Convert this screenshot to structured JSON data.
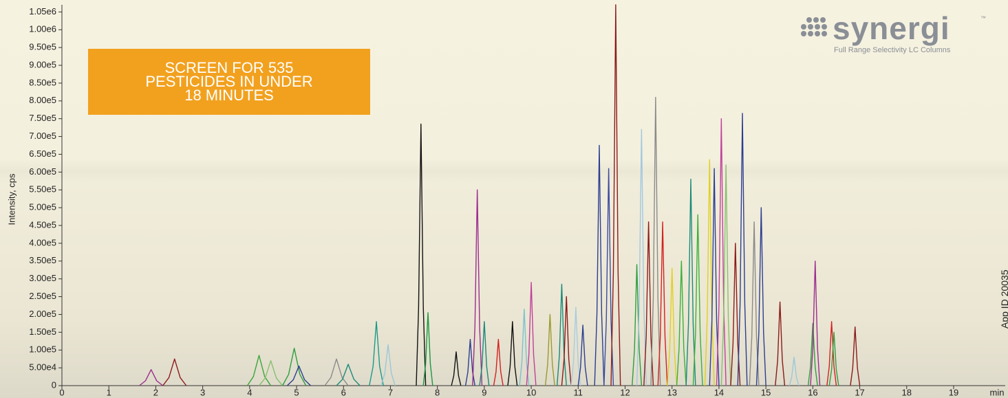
{
  "chart_data": {
    "type": "line",
    "annotation": "SCREEN FOR 535 PESTICIDES IN UNDER 18 MINUTES",
    "ylabel": "Intensity, cps",
    "xlabel": "min",
    "xlim": [
      0,
      20.1
    ],
    "ylim": [
      0,
      1070000
    ],
    "xticks": [
      0,
      1,
      2,
      3,
      4,
      5,
      6,
      7,
      8,
      9,
      10,
      11,
      12,
      13,
      14,
      15,
      16,
      17,
      18,
      19
    ],
    "yticks": [
      0,
      {
        "value": 50000,
        "label": "5.00e4"
      },
      {
        "value": 100000,
        "label": "1.00e5"
      },
      {
        "value": 150000,
        "label": "1.50e5"
      },
      {
        "value": 200000,
        "label": "2.00e5"
      },
      {
        "value": 250000,
        "label": "2.50e5"
      },
      {
        "value": 300000,
        "label": "3.00e5"
      },
      {
        "value": 350000,
        "label": "3.50e5"
      },
      {
        "value": 400000,
        "label": "4.00e5"
      },
      {
        "value": 450000,
        "label": "4.50e5"
      },
      {
        "value": 500000,
        "label": "5.00e5"
      },
      {
        "value": 550000,
        "label": "5.50e5"
      },
      {
        "value": 600000,
        "label": "6.00e5"
      },
      {
        "value": 650000,
        "label": "6.50e5"
      },
      {
        "value": 700000,
        "label": "7.00e5"
      },
      {
        "value": 750000,
        "label": "7.50e5"
      },
      {
        "value": 800000,
        "label": "8.00e5"
      },
      {
        "value": 850000,
        "label": "8.50e5"
      },
      {
        "value": 900000,
        "label": "9.00e5"
      },
      {
        "value": 950000,
        "label": "9.50e5"
      },
      {
        "value": 1000000,
        "label": "1.00e6"
      },
      {
        "value": 1050000,
        "label": "1.05e6"
      }
    ],
    "series": [
      {
        "color": "#9b2d8e",
        "x": [
          1.65,
          1.78,
          1.9,
          2.02,
          2.15
        ],
        "values": [
          0,
          13500,
          45000,
          13500,
          0
        ]
      },
      {
        "color": "#8b1a1a",
        "x": [
          2.15,
          2.28,
          2.4,
          2.52,
          2.65
        ],
        "values": [
          0,
          22500,
          75000,
          22500,
          0
        ]
      },
      {
        "color": "#3aa63a",
        "x": [
          3.95,
          4.08,
          4.2,
          4.32,
          4.45
        ],
        "values": [
          0,
          25500,
          85000,
          25500,
          0
        ]
      },
      {
        "color": "#88c070",
        "x": [
          4.2,
          4.33,
          4.45,
          4.57,
          4.7
        ],
        "values": [
          0,
          21000,
          70000,
          21000,
          0
        ]
      },
      {
        "color": "#2e9e3e",
        "x": [
          4.7,
          4.83,
          4.95,
          5.07,
          5.2
        ],
        "values": [
          0,
          31500,
          105000,
          31500,
          0
        ]
      },
      {
        "color": "#2c3e91",
        "x": [
          4.8,
          4.93,
          5.05,
          5.17,
          5.3
        ],
        "values": [
          0,
          16500,
          55000,
          16500,
          0
        ]
      },
      {
        "color": "#8a8a8a",
        "x": [
          5.6,
          5.73,
          5.85,
          5.97,
          6.1
        ],
        "values": [
          0,
          22500,
          75000,
          22500,
          0
        ]
      },
      {
        "color": "#1a8a7a",
        "x": [
          5.85,
          5.98,
          6.1,
          6.22,
          6.35
        ],
        "values": [
          0,
          18000,
          60000,
          18000,
          0
        ]
      },
      {
        "color": "#1a9a8a",
        "x": [
          6.55,
          6.63,
          6.7,
          6.77,
          6.85
        ],
        "values": [
          0,
          54000,
          180000,
          54000,
          0
        ]
      },
      {
        "color": "#9cc8d8",
        "x": [
          6.8,
          6.88,
          6.95,
          7.02,
          7.1
        ],
        "values": [
          0,
          34500,
          115000,
          34500,
          0
        ]
      },
      {
        "color": "#111111",
        "x": [
          7.55,
          7.6,
          7.65,
          7.7,
          7.75
        ],
        "values": [
          0,
          220500,
          735000,
          220500,
          0
        ]
      },
      {
        "color": "#1a9a40",
        "x": [
          7.7,
          7.75,
          7.8,
          7.85,
          7.9
        ],
        "values": [
          0,
          61500,
          205000,
          61500,
          0
        ]
      },
      {
        "color": "#111111",
        "x": [
          8.3,
          8.35,
          8.4,
          8.45,
          8.5
        ],
        "values": [
          0,
          28500,
          95000,
          28500,
          0
        ]
      },
      {
        "color": "#2c3e91",
        "x": [
          8.6,
          8.65,
          8.7,
          8.75,
          8.8
        ],
        "values": [
          0,
          39000,
          130000,
          39000,
          0
        ]
      },
      {
        "color": "#9b2d8e",
        "x": [
          8.75,
          8.8,
          8.85,
          8.9,
          8.95
        ],
        "values": [
          0,
          165000,
          550000,
          165000,
          0
        ]
      },
      {
        "color": "#1a8a7a",
        "x": [
          8.9,
          8.95,
          9,
          9.05,
          9.1
        ],
        "values": [
          0,
          54000,
          180000,
          54000,
          0
        ]
      },
      {
        "color": "#d42020",
        "x": [
          9.2,
          9.25,
          9.3,
          9.35,
          9.4
        ],
        "values": [
          0,
          39000,
          130000,
          39000,
          0
        ]
      },
      {
        "color": "#111111",
        "x": [
          9.5,
          9.55,
          9.6,
          9.65,
          9.7
        ],
        "values": [
          0,
          54000,
          180000,
          54000,
          0
        ]
      },
      {
        "color": "#7ec0d0",
        "x": [
          9.75,
          9.8,
          9.85,
          9.9,
          9.95
        ],
        "values": [
          0,
          64500,
          215000,
          64500,
          0
        ]
      },
      {
        "color": "#c0409a",
        "x": [
          9.9,
          9.95,
          10,
          10.05,
          10.1
        ],
        "values": [
          0,
          87000,
          290000,
          87000,
          0
        ]
      },
      {
        "color": "#9a9a30",
        "x": [
          10.3,
          10.35,
          10.4,
          10.45,
          10.5
        ],
        "values": [
          0,
          60000,
          200000,
          60000,
          0
        ]
      },
      {
        "color": "#1a8a7a",
        "x": [
          10.55,
          10.6,
          10.65,
          10.7,
          10.75
        ],
        "values": [
          0,
          85500,
          285000,
          85500,
          0
        ]
      },
      {
        "color": "#8b1a1a",
        "x": [
          10.65,
          10.7,
          10.75,
          10.8,
          10.85
        ],
        "values": [
          0,
          75000,
          250000,
          75000,
          0
        ]
      },
      {
        "color": "#a8cce0",
        "x": [
          10.85,
          10.9,
          10.95,
          11,
          11.05
        ],
        "values": [
          0,
          66000,
          220000,
          66000,
          0
        ]
      },
      {
        "color": "#2c3e91",
        "x": [
          11,
          11.05,
          11.1,
          11.15,
          11.2
        ],
        "values": [
          0,
          51000,
          170000,
          51000,
          0
        ]
      },
      {
        "color": "#2c3e91",
        "x": [
          11.35,
          11.4,
          11.45,
          11.5,
          11.55
        ],
        "values": [
          0,
          202500,
          675000,
          202500,
          0
        ]
      },
      {
        "color": "#3b4aa0",
        "x": [
          11.55,
          11.6,
          11.65,
          11.7,
          11.75
        ],
        "values": [
          0,
          183000,
          610000,
          183000,
          0
        ]
      },
      {
        "color": "#8b1a1a",
        "x": [
          11.7,
          11.75,
          11.8,
          11.85,
          11.9
        ],
        "values": [
          0,
          321000,
          1070000,
          321000,
          0
        ]
      },
      {
        "color": "#2e9e3e",
        "x": [
          12.15,
          12.2,
          12.25,
          12.3,
          12.35
        ],
        "values": [
          0,
          102000,
          340000,
          102000,
          0
        ]
      },
      {
        "color": "#a0c8e0",
        "x": [
          12.25,
          12.3,
          12.35,
          12.4,
          12.45
        ],
        "values": [
          0,
          216000,
          720000,
          216000,
          0
        ]
      },
      {
        "color": "#8b1a1a",
        "x": [
          12.4,
          12.45,
          12.5,
          12.55,
          12.6
        ],
        "values": [
          0,
          138000,
          460000,
          138000,
          0
        ]
      },
      {
        "color": "#8a8a8a",
        "x": [
          12.55,
          12.6,
          12.65,
          12.7,
          12.75
        ],
        "values": [
          0,
          243000,
          810000,
          243000,
          0
        ]
      },
      {
        "color": "#d42020",
        "x": [
          12.7,
          12.75,
          12.8,
          12.85,
          12.9
        ],
        "values": [
          0,
          138000,
          460000,
          138000,
          0
        ]
      },
      {
        "color": "#e0d020",
        "x": [
          12.9,
          12.95,
          13,
          13.05,
          13.1
        ],
        "values": [
          0,
          99000,
          330000,
          99000,
          0
        ]
      },
      {
        "color": "#3ab03a",
        "x": [
          13.1,
          13.15,
          13.2,
          13.25,
          13.3
        ],
        "values": [
          0,
          105000,
          350000,
          105000,
          0
        ]
      },
      {
        "color": "#1a8a7a",
        "x": [
          13.3,
          13.35,
          13.4,
          13.45,
          13.5
        ],
        "values": [
          0,
          174000,
          580000,
          174000,
          0
        ]
      },
      {
        "color": "#3ab03a",
        "x": [
          13.45,
          13.5,
          13.55,
          13.6,
          13.65
        ],
        "values": [
          0,
          144000,
          480000,
          144000,
          0
        ]
      },
      {
        "color": "#e0d020",
        "x": [
          13.7,
          13.75,
          13.8,
          13.85,
          13.9
        ],
        "values": [
          0,
          190500,
          635000,
          190500,
          0
        ]
      },
      {
        "color": "#2c3e91",
        "x": [
          13.8,
          13.85,
          13.9,
          13.95,
          14
        ],
        "values": [
          0,
          183000,
          610000,
          183000,
          0
        ]
      },
      {
        "color": "#c0409a",
        "x": [
          13.95,
          14,
          14.05,
          14.1,
          14.15
        ],
        "values": [
          0,
          225000,
          750000,
          225000,
          0
        ]
      },
      {
        "color": "#88c070",
        "x": [
          14.05,
          14.1,
          14.15,
          14.2,
          14.25
        ],
        "values": [
          0,
          186000,
          620000,
          186000,
          0
        ]
      },
      {
        "color": "#8b1a1a",
        "x": [
          14.25,
          14.3,
          14.35,
          14.4,
          14.45
        ],
        "values": [
          0,
          120000,
          400000,
          120000,
          0
        ]
      },
      {
        "color": "#2c3e91",
        "x": [
          14.4,
          14.45,
          14.5,
          14.55,
          14.6
        ],
        "values": [
          0,
          229500,
          765000,
          229500,
          0
        ]
      },
      {
        "color": "#8a8a8a",
        "x": [
          14.65,
          14.7,
          14.75,
          14.8,
          14.85
        ],
        "values": [
          0,
          138000,
          460000,
          138000,
          0
        ]
      },
      {
        "color": "#2c3e91",
        "x": [
          14.8,
          14.85,
          14.9,
          14.95,
          15
        ],
        "values": [
          0,
          150000,
          500000,
          150000,
          0
        ]
      },
      {
        "color": "#8b1a1a",
        "x": [
          15.2,
          15.25,
          15.3,
          15.35,
          15.4
        ],
        "values": [
          0,
          70500,
          235000,
          70500,
          0
        ]
      },
      {
        "color": "#9cc8d8",
        "x": [
          15.5,
          15.55,
          15.6,
          15.65,
          15.7
        ],
        "values": [
          0,
          24000,
          80000,
          24000,
          0
        ]
      },
      {
        "color": "#2e9e3e",
        "x": [
          15.9,
          15.95,
          16,
          16.05,
          16.1
        ],
        "values": [
          0,
          52500,
          175000,
          52500,
          0
        ]
      },
      {
        "color": "#9b2d8e",
        "x": [
          15.95,
          16,
          16.05,
          16.1,
          16.15
        ],
        "values": [
          0,
          105000,
          350000,
          105000,
          0
        ]
      },
      {
        "color": "#d42020",
        "x": [
          16.3,
          16.35,
          16.4,
          16.45,
          16.5
        ],
        "values": [
          0,
          54000,
          180000,
          54000,
          0
        ]
      },
      {
        "color": "#2e9e3e",
        "x": [
          16.35,
          16.4,
          16.45,
          16.5,
          16.55
        ],
        "values": [
          0,
          45000,
          150000,
          45000,
          0
        ]
      },
      {
        "color": "#8b1a1a",
        "x": [
          16.8,
          16.85,
          16.9,
          16.95,
          17
        ],
        "values": [
          0,
          49500,
          165000,
          49500,
          0
        ]
      }
    ]
  },
  "logo": {
    "name": "synergi",
    "trademark": "™",
    "tagline": "Full Range Selectivity LC Columns"
  },
  "app_id": "App ID 20035"
}
